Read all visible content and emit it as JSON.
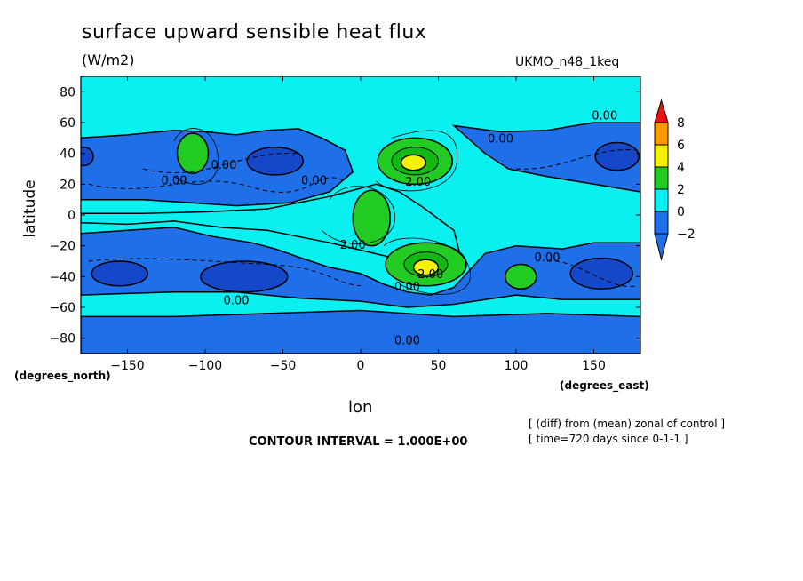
{
  "chart_data": {
    "type": "contour-map",
    "title": "surface upward sensible heat flux",
    "units": "(W/m2)",
    "run_label": "UKMO_n48_1keq",
    "xlabel": "lon",
    "ylabel": "latitude",
    "x_units": "(degrees_east)",
    "y_units": "(degrees_north)",
    "xlim": [
      -180,
      180
    ],
    "ylim": [
      -90,
      90
    ],
    "x_ticks": [
      -150,
      -100,
      -50,
      0,
      50,
      100,
      150
    ],
    "x_tick_labels": [
      "−150",
      "−100",
      "−50",
      "0",
      "50",
      "100",
      "150"
    ],
    "y_ticks": [
      80,
      60,
      40,
      20,
      0,
      -20,
      -40,
      -60,
      -80
    ],
    "y_tick_labels": [
      "80",
      "60",
      "40",
      "20",
      "0",
      "−20",
      "−40",
      "−60",
      "−80"
    ],
    "contour_interval": "CONTOUR INTERVAL = 1.000E+00",
    "notes": [
      "[ (diff) from (mean) zonal of control ]",
      "[ time=720 days since 0-1-1 ]"
    ],
    "colorbar": {
      "levels": [
        -2,
        0,
        2,
        4,
        6,
        8
      ],
      "labels": [
        "−2",
        "0",
        "2",
        "4",
        "6",
        "8"
      ],
      "colors": [
        "#1f6fe8",
        "#0af0f0",
        "#22cc22",
        "#f5f200",
        "#ff9900",
        "#ee1111"
      ]
    },
    "contour_labels": [
      {
        "text": "0.00",
        "lon": 157,
        "lat": 62
      },
      {
        "text": "0.00",
        "lon": 90,
        "lat": 47
      },
      {
        "text": "0.00",
        "lon": -120,
        "lat": 20
      },
      {
        "text": "0.00",
        "lon": -88,
        "lat": 30
      },
      {
        "text": "0.00",
        "lon": -30,
        "lat": 20
      },
      {
        "text": "2.00",
        "lon": 37,
        "lat": 19
      },
      {
        "text": "2.00",
        "lon": -5,
        "lat": -22
      },
      {
        "text": "2.00",
        "lon": 45,
        "lat": -41
      },
      {
        "text": "0.00",
        "lon": 30,
        "lat": -49
      },
      {
        "text": "0.00",
        "lon": 120,
        "lat": -30
      },
      {
        "text": "0.00",
        "lon": -80,
        "lat": -58
      },
      {
        "text": "0.00",
        "lon": 30,
        "lat": -84
      }
    ],
    "features": [
      {
        "name": "positive anomaly",
        "lon": 35,
        "lat": 35,
        "peak": 5
      },
      {
        "name": "positive anomaly",
        "lon": 42,
        "lat": -32,
        "peak": 5
      },
      {
        "name": "positive anomaly",
        "lon": -108,
        "lat": 40,
        "peak": 3
      },
      {
        "name": "positive anomaly",
        "lon": 7,
        "lat": -2,
        "peak": 3
      },
      {
        "name": "positive anomaly",
        "lon": 103,
        "lat": -40,
        "peak": 3
      },
      {
        "name": "negative anomaly",
        "lon": -55,
        "lat": 35,
        "peak": -3
      },
      {
        "name": "negative anomaly",
        "lon": 165,
        "lat": 38,
        "peak": -3
      },
      {
        "name": "negative anomaly",
        "lon": -75,
        "lat": -40,
        "peak": -3
      },
      {
        "name": "negative anomaly",
        "lon": -150,
        "lat": -38,
        "peak": -2.5
      },
      {
        "name": "negative anomaly",
        "lon": 150,
        "lat": -38,
        "peak": -2.5
      }
    ]
  }
}
